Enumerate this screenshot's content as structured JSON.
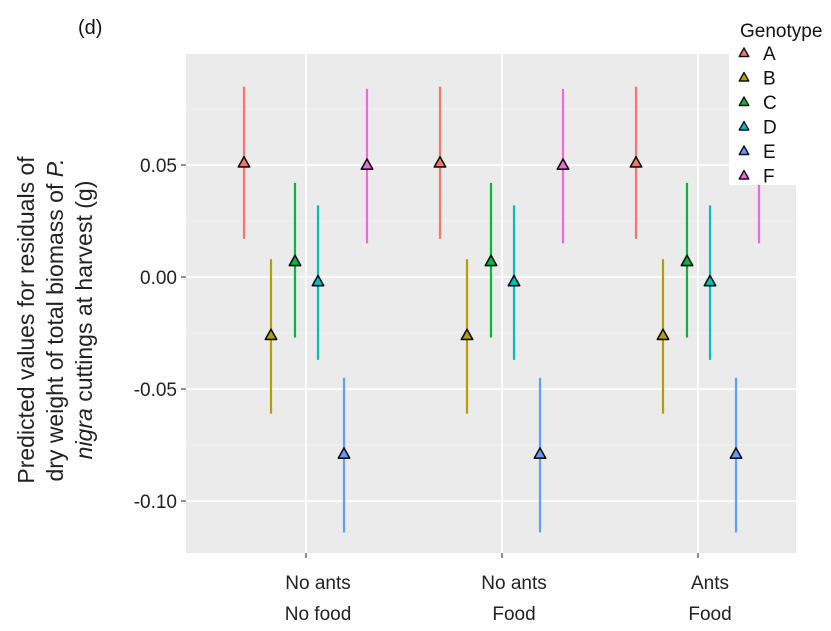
{
  "panel_label": "(d)",
  "chart_data": {
    "type": "scatter",
    "subtype": "point-range",
    "title": "",
    "xlabel": "",
    "ylabel_lines": [
      [
        "Predicted values for residuals of"
      ],
      [
        "dry weight of total biomass of ",
        "P."
      ],
      [
        "nigra",
        " cuttings at harvest (g)"
      ]
    ],
    "ylim": [
      -0.125,
      0.1
    ],
    "yticks": [
      0.05,
      0.0,
      -0.05,
      -0.1
    ],
    "ytick_labels": [
      "0.05",
      "0.00",
      "-0.05",
      "-0.10"
    ],
    "categories": [
      {
        "line1": "No ants",
        "line2": "No food"
      },
      {
        "line1": "No ants",
        "line2": "Food"
      },
      {
        "line1": "Ants",
        "line2": "Food"
      }
    ],
    "grid": true,
    "legend": {
      "title": "Genotype",
      "position": "top-right"
    },
    "series": [
      {
        "name": "A",
        "color": "#F8766D",
        "values": [
          0.051,
          0.051,
          0.051
        ],
        "lower": [
          0.017,
          0.017,
          0.017
        ],
        "upper": [
          0.085,
          0.085,
          0.085
        ]
      },
      {
        "name": "B",
        "color": "#B79F00",
        "values": [
          -0.026,
          -0.026,
          -0.026
        ],
        "lower": [
          -0.061,
          -0.061,
          -0.061
        ],
        "upper": [
          0.008,
          0.008,
          0.008
        ]
      },
      {
        "name": "C",
        "color": "#00BA38",
        "values": [
          0.007,
          0.007,
          0.007
        ],
        "lower": [
          -0.027,
          -0.027,
          -0.027
        ],
        "upper": [
          0.042,
          0.042,
          0.042
        ]
      },
      {
        "name": "D",
        "color": "#00BFC4",
        "values": [
          -0.002,
          -0.002,
          -0.002
        ],
        "lower": [
          -0.037,
          -0.037,
          -0.037
        ],
        "upper": [
          0.032,
          0.032,
          0.032
        ]
      },
      {
        "name": "E",
        "color": "#619CFF",
        "values": [
          -0.079,
          -0.079,
          -0.079
        ],
        "lower": [
          -0.114,
          -0.114,
          -0.114
        ],
        "upper": [
          -0.045,
          -0.045,
          -0.045
        ]
      },
      {
        "name": "F",
        "color": "#F564E3",
        "values": [
          0.05,
          0.05,
          0.05
        ],
        "lower": [
          0.015,
          0.015,
          0.015
        ],
        "upper": [
          0.084,
          0.084,
          0.084
        ]
      }
    ]
  }
}
